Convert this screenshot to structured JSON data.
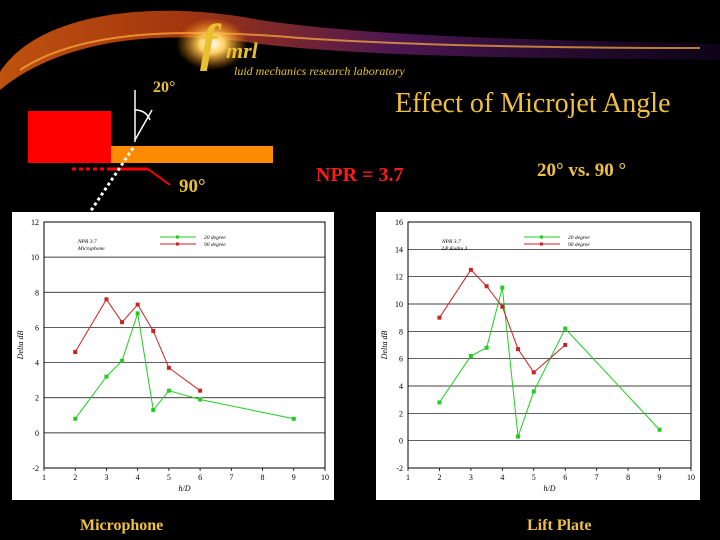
{
  "header": {
    "logo_f": "f",
    "logo_mrl": "mrl",
    "logo_subtitle": "luid mechanics research laboratory",
    "title": "Effect of Microjet Angle"
  },
  "diagram": {
    "angle_20": "20°",
    "angle_90": "90°"
  },
  "annotations": {
    "npr": "NPR = 3.7",
    "angle_comparison": "20° vs. 90 °"
  },
  "captions": {
    "left": "Microphone",
    "right": "Lift Plate"
  },
  "colors": {
    "series_20": "#22cc22",
    "series_90": "#cc2222",
    "accent": "#f0c040",
    "npr": "#ff1a1a"
  },
  "chart_data": [
    {
      "type": "line",
      "xlabel": "h/D",
      "ylabel": "Delta dB",
      "xlim": [
        1,
        10
      ],
      "ylim": [
        -2,
        12
      ],
      "xticks": [
        1,
        2,
        3,
        4,
        5,
        6,
        7,
        8,
        9,
        10
      ],
      "yticks": [
        -2,
        0,
        2,
        4,
        6,
        8,
        10,
        12
      ],
      "grid": true,
      "legend_position": "top-center",
      "annotation_lines": [
        "NPR 3.7",
        "Microphone"
      ],
      "series": [
        {
          "name": "20 degree",
          "color": "#22cc22",
          "x": [
            2,
            3,
            3.5,
            4,
            4.5,
            5,
            6,
            9
          ],
          "y": [
            0.8,
            3.2,
            4.1,
            6.8,
            1.3,
            2.4,
            1.9,
            0.8
          ]
        },
        {
          "name": "90 degree",
          "color": "#cc2222",
          "x": [
            2,
            3,
            3.5,
            4,
            4.5,
            5,
            6
          ],
          "y": [
            4.6,
            7.6,
            6.3,
            7.3,
            5.8,
            3.7,
            2.4
          ]
        }
      ]
    },
    {
      "type": "line",
      "xlabel": "h/D",
      "ylabel": "Delta dB",
      "xlim": [
        1,
        10
      ],
      "ylim": [
        -2,
        16
      ],
      "xticks": [
        1,
        2,
        3,
        4,
        5,
        6,
        7,
        8,
        9,
        10
      ],
      "yticks": [
        -2,
        0,
        2,
        4,
        6,
        8,
        10,
        12,
        14,
        16
      ],
      "grid": true,
      "legend_position": "top-center",
      "annotation_lines": [
        "NPR 3.7",
        "LP Kulite 3"
      ],
      "series": [
        {
          "name": "20 degree",
          "color": "#22cc22",
          "x": [
            2,
            3,
            3.5,
            4,
            4.5,
            5,
            6,
            9
          ],
          "y": [
            2.8,
            6.2,
            6.8,
            11.2,
            0.3,
            3.6,
            8.2,
            0.8
          ]
        },
        {
          "name": "90 degree",
          "color": "#cc2222",
          "x": [
            2,
            3,
            3.5,
            4,
            4.5,
            5,
            6
          ],
          "y": [
            9.0,
            12.5,
            11.3,
            9.8,
            6.7,
            5.0,
            7.0
          ]
        }
      ]
    }
  ]
}
